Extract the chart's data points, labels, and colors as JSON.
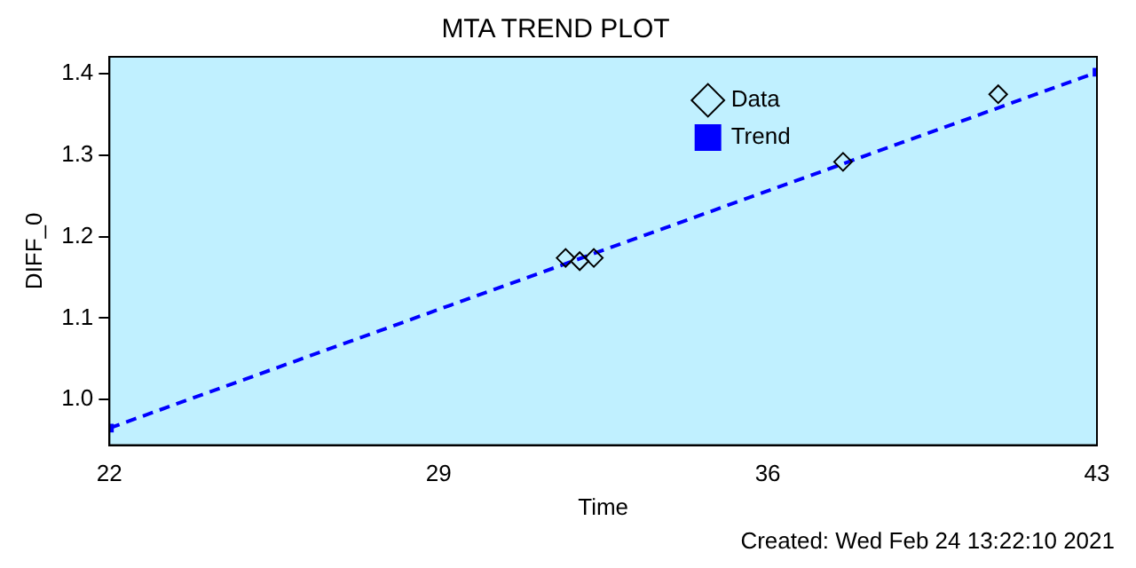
{
  "chart_data": {
    "type": "scatter",
    "title": "MTA TREND PLOT",
    "xlabel": "Time",
    "ylabel": "DIFF_0",
    "xlim": [
      22,
      43
    ],
    "xticks": [
      22,
      29,
      36,
      43
    ],
    "ylim": [
      0.944,
      1.421
    ],
    "yticks": [
      {
        "value": 1.0,
        "label": "1.0"
      },
      {
        "value": 1.1,
        "label": "1.1"
      },
      {
        "value": 1.2,
        "label": "1.2"
      },
      {
        "value": 1.3,
        "label": "1.3"
      },
      {
        "value": 1.4,
        "label": "1.4"
      }
    ],
    "grid": false,
    "legend": "top right",
    "series": [
      {
        "name": "Data",
        "color": "#000000",
        "marker": "diamond",
        "x": [
          31.7,
          32.0,
          32.3,
          37.6,
          40.9
        ],
        "values": [
          1.174,
          1.17,
          1.174,
          1.292,
          1.375
        ]
      },
      {
        "name": "Trend",
        "type": "line",
        "color": "#0000ff",
        "marker": "square",
        "line_style": "dashed",
        "x": [
          22,
          43
        ],
        "values": [
          0.965,
          1.402
        ]
      }
    ],
    "annotations": [
      "Created: Wed Feb 24 13:22:10 2021"
    ]
  }
}
